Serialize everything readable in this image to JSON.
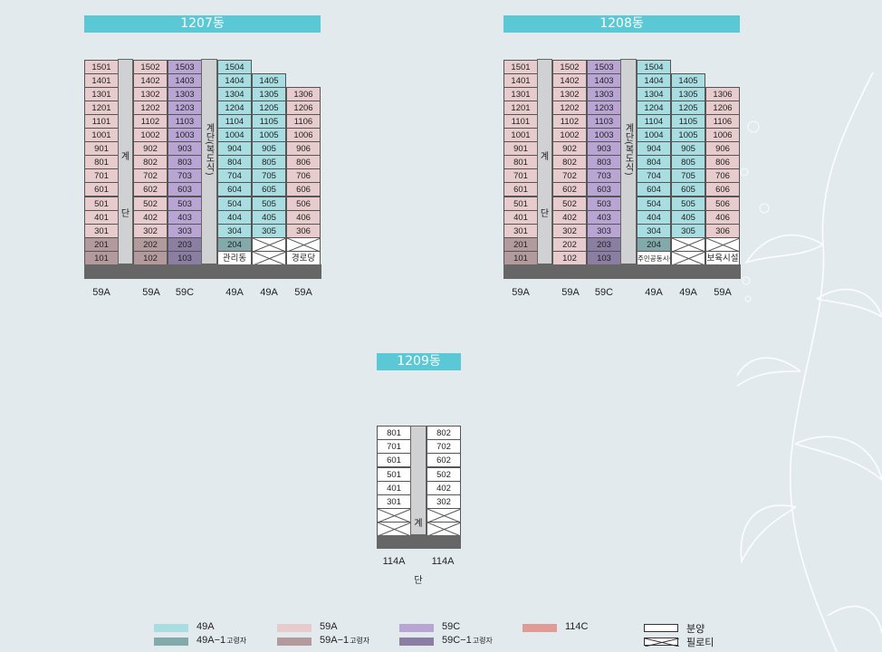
{
  "colors": {
    "49A": "#a8dde1",
    "49A-1": "#84a9aa",
    "59A": "#e8cbcc",
    "59A-1": "#b39b9d",
    "59C": "#b9a5d3",
    "59C-1": "#8b7ea3",
    "114C": "#e19b97",
    "sale": "#ffffff",
    "title_bg": "#5bc8d5",
    "stair": "#cfd1d2",
    "base": "#666666"
  },
  "buildings": {
    "b1207": {
      "title": "1207동",
      "stair_a": "계 단",
      "stair_b": "계단(복도식)",
      "col_labels": [
        "59A",
        "59A",
        "59C",
        "49A",
        "49A",
        "59A"
      ]
    },
    "b1208": {
      "title": "1208동",
      "stair_a": "계 단",
      "stair_b": "계단(복도식)",
      "col_labels": [
        "59A",
        "59A",
        "59C",
        "49A",
        "49A",
        "59A"
      ]
    },
    "b1209": {
      "title": "1209동",
      "stair": "계 단",
      "col_labels": [
        "114A",
        "114A"
      ]
    }
  },
  "grid_1207": {
    "col1": [
      {
        "t": "1501",
        "c": "59A"
      },
      {
        "t": "1401",
        "c": "59A"
      },
      {
        "t": "1301",
        "c": "59A"
      },
      {
        "t": "1201",
        "c": "59A"
      },
      {
        "t": "1101",
        "c": "59A"
      },
      {
        "t": "1001",
        "c": "59A"
      },
      {
        "t": "901",
        "c": "59A"
      },
      {
        "t": "801",
        "c": "59A"
      },
      {
        "t": "701",
        "c": "59A"
      },
      {
        "t": "601",
        "c": "59A"
      },
      {
        "t": "501",
        "c": "59A"
      },
      {
        "t": "401",
        "c": "59A"
      },
      {
        "t": "301",
        "c": "59A"
      },
      {
        "t": "201",
        "c": "59A-1"
      },
      {
        "t": "101",
        "c": "59A-1"
      }
    ],
    "col2": [
      {
        "t": "1502",
        "c": "59A"
      },
      {
        "t": "1402",
        "c": "59A"
      },
      {
        "t": "1302",
        "c": "59A"
      },
      {
        "t": "1202",
        "c": "59A"
      },
      {
        "t": "1102",
        "c": "59A"
      },
      {
        "t": "1002",
        "c": "59A"
      },
      {
        "t": "902",
        "c": "59A"
      },
      {
        "t": "802",
        "c": "59A"
      },
      {
        "t": "702",
        "c": "59A"
      },
      {
        "t": "602",
        "c": "59A"
      },
      {
        "t": "502",
        "c": "59A"
      },
      {
        "t": "402",
        "c": "59A"
      },
      {
        "t": "302",
        "c": "59A"
      },
      {
        "t": "202",
        "c": "59A-1"
      },
      {
        "t": "102",
        "c": "59A-1"
      }
    ],
    "col3": [
      {
        "t": "1503",
        "c": "59C"
      },
      {
        "t": "1403",
        "c": "59C"
      },
      {
        "t": "1303",
        "c": "59C"
      },
      {
        "t": "1203",
        "c": "59C"
      },
      {
        "t": "1103",
        "c": "59C"
      },
      {
        "t": "1003",
        "c": "59C"
      },
      {
        "t": "903",
        "c": "59C"
      },
      {
        "t": "803",
        "c": "59C"
      },
      {
        "t": "703",
        "c": "59C"
      },
      {
        "t": "603",
        "c": "59C"
      },
      {
        "t": "503",
        "c": "59C"
      },
      {
        "t": "403",
        "c": "59C"
      },
      {
        "t": "303",
        "c": "59C"
      },
      {
        "t": "203",
        "c": "59C-1"
      },
      {
        "t": "103",
        "c": "59C-1"
      }
    ],
    "col4": [
      {
        "t": "1504",
        "c": "49A"
      },
      {
        "t": "1404",
        "c": "49A"
      },
      {
        "t": "1304",
        "c": "49A"
      },
      {
        "t": "1204",
        "c": "49A"
      },
      {
        "t": "1104",
        "c": "49A"
      },
      {
        "t": "1004",
        "c": "49A"
      },
      {
        "t": "904",
        "c": "49A"
      },
      {
        "t": "804",
        "c": "49A"
      },
      {
        "t": "704",
        "c": "49A"
      },
      {
        "t": "604",
        "c": "49A"
      },
      {
        "t": "504",
        "c": "49A"
      },
      {
        "t": "404",
        "c": "49A"
      },
      {
        "t": "304",
        "c": "49A"
      },
      {
        "t": "204",
        "c": "49A-1"
      },
      {
        "t": "관리동",
        "c": "sale"
      }
    ],
    "col5": [
      {
        "t": "1405",
        "c": "49A"
      },
      {
        "t": "1305",
        "c": "49A"
      },
      {
        "t": "1205",
        "c": "49A"
      },
      {
        "t": "1105",
        "c": "49A"
      },
      {
        "t": "1005",
        "c": "49A"
      },
      {
        "t": "905",
        "c": "49A"
      },
      {
        "t": "805",
        "c": "49A"
      },
      {
        "t": "705",
        "c": "49A"
      },
      {
        "t": "605",
        "c": "49A"
      },
      {
        "t": "505",
        "c": "49A"
      },
      {
        "t": "405",
        "c": "49A"
      },
      {
        "t": "305",
        "c": "49A"
      },
      {
        "t": "",
        "c": "piloti"
      },
      {
        "t": "",
        "c": "piloti"
      }
    ],
    "col6": [
      {
        "t": "1306",
        "c": "59A"
      },
      {
        "t": "1206",
        "c": "59A"
      },
      {
        "t": "1106",
        "c": "59A"
      },
      {
        "t": "1006",
        "c": "59A"
      },
      {
        "t": "906",
        "c": "59A"
      },
      {
        "t": "806",
        "c": "59A"
      },
      {
        "t": "706",
        "c": "59A"
      },
      {
        "t": "606",
        "c": "59A"
      },
      {
        "t": "506",
        "c": "59A"
      },
      {
        "t": "406",
        "c": "59A"
      },
      {
        "t": "306",
        "c": "59A"
      },
      {
        "t": "",
        "c": "piloti"
      },
      {
        "t": "경로당",
        "c": "sale"
      }
    ]
  },
  "grid_1208": {
    "col1": [
      {
        "t": "1501",
        "c": "59A"
      },
      {
        "t": "1401",
        "c": "59A"
      },
      {
        "t": "1301",
        "c": "59A"
      },
      {
        "t": "1201",
        "c": "59A"
      },
      {
        "t": "1101",
        "c": "59A"
      },
      {
        "t": "1001",
        "c": "59A"
      },
      {
        "t": "901",
        "c": "59A"
      },
      {
        "t": "801",
        "c": "59A"
      },
      {
        "t": "701",
        "c": "59A"
      },
      {
        "t": "601",
        "c": "59A"
      },
      {
        "t": "501",
        "c": "59A"
      },
      {
        "t": "401",
        "c": "59A"
      },
      {
        "t": "301",
        "c": "59A"
      },
      {
        "t": "201",
        "c": "59A-1"
      },
      {
        "t": "101",
        "c": "59A-1"
      }
    ],
    "col2": [
      {
        "t": "1502",
        "c": "59A"
      },
      {
        "t": "1402",
        "c": "59A"
      },
      {
        "t": "1302",
        "c": "59A"
      },
      {
        "t": "1202",
        "c": "59A"
      },
      {
        "t": "1102",
        "c": "59A"
      },
      {
        "t": "1002",
        "c": "59A"
      },
      {
        "t": "902",
        "c": "59A"
      },
      {
        "t": "802",
        "c": "59A"
      },
      {
        "t": "702",
        "c": "59A"
      },
      {
        "t": "602",
        "c": "59A"
      },
      {
        "t": "502",
        "c": "59A"
      },
      {
        "t": "402",
        "c": "59A"
      },
      {
        "t": "302",
        "c": "59A"
      },
      {
        "t": "202",
        "c": "59A"
      },
      {
        "t": "102",
        "c": "59A"
      }
    ],
    "col3": [
      {
        "t": "1503",
        "c": "59C"
      },
      {
        "t": "1403",
        "c": "59C"
      },
      {
        "t": "1303",
        "c": "59C"
      },
      {
        "t": "1203",
        "c": "59C"
      },
      {
        "t": "1103",
        "c": "59C"
      },
      {
        "t": "1003",
        "c": "59C"
      },
      {
        "t": "903",
        "c": "59C"
      },
      {
        "t": "803",
        "c": "59C"
      },
      {
        "t": "703",
        "c": "59C"
      },
      {
        "t": "603",
        "c": "59C"
      },
      {
        "t": "503",
        "c": "59C"
      },
      {
        "t": "403",
        "c": "59C"
      },
      {
        "t": "303",
        "c": "59C"
      },
      {
        "t": "203",
        "c": "59C-1"
      },
      {
        "t": "103",
        "c": "59C-1"
      }
    ],
    "col4": [
      {
        "t": "1504",
        "c": "49A"
      },
      {
        "t": "1404",
        "c": "49A"
      },
      {
        "t": "1304",
        "c": "49A"
      },
      {
        "t": "1204",
        "c": "49A"
      },
      {
        "t": "1104",
        "c": "49A"
      },
      {
        "t": "1004",
        "c": "49A"
      },
      {
        "t": "904",
        "c": "49A"
      },
      {
        "t": "804",
        "c": "49A"
      },
      {
        "t": "704",
        "c": "49A"
      },
      {
        "t": "604",
        "c": "49A"
      },
      {
        "t": "504",
        "c": "49A"
      },
      {
        "t": "404",
        "c": "49A"
      },
      {
        "t": "304",
        "c": "49A"
      },
      {
        "t": "204",
        "c": "49A-1"
      },
      {
        "t": "주민공동시설",
        "c": "sale"
      }
    ],
    "col5": [
      {
        "t": "1405",
        "c": "49A"
      },
      {
        "t": "1305",
        "c": "49A"
      },
      {
        "t": "1205",
        "c": "49A"
      },
      {
        "t": "1105",
        "c": "49A"
      },
      {
        "t": "1005",
        "c": "49A"
      },
      {
        "t": "905",
        "c": "49A"
      },
      {
        "t": "805",
        "c": "49A"
      },
      {
        "t": "705",
        "c": "49A"
      },
      {
        "t": "605",
        "c": "49A"
      },
      {
        "t": "505",
        "c": "49A"
      },
      {
        "t": "405",
        "c": "49A"
      },
      {
        "t": "305",
        "c": "49A"
      },
      {
        "t": "",
        "c": "piloti"
      },
      {
        "t": "",
        "c": "piloti"
      }
    ],
    "col6": [
      {
        "t": "1306",
        "c": "59A"
      },
      {
        "t": "1206",
        "c": "59A"
      },
      {
        "t": "1106",
        "c": "59A"
      },
      {
        "t": "1006",
        "c": "59A"
      },
      {
        "t": "906",
        "c": "59A"
      },
      {
        "t": "806",
        "c": "59A"
      },
      {
        "t": "706",
        "c": "59A"
      },
      {
        "t": "606",
        "c": "59A"
      },
      {
        "t": "506",
        "c": "59A"
      },
      {
        "t": "406",
        "c": "59A"
      },
      {
        "t": "306",
        "c": "59A"
      },
      {
        "t": "",
        "c": "piloti"
      },
      {
        "t": "보육시설",
        "c": "sale"
      }
    ]
  },
  "grid_1209": {
    "col1": [
      {
        "t": "801",
        "c": "sale"
      },
      {
        "t": "701",
        "c": "sale"
      },
      {
        "t": "601",
        "c": "sale"
      },
      {
        "t": "501",
        "c": "sale"
      },
      {
        "t": "401",
        "c": "sale"
      },
      {
        "t": "301",
        "c": "sale"
      },
      {
        "t": "",
        "c": "piloti"
      },
      {
        "t": "",
        "c": "piloti"
      }
    ],
    "col2": [
      {
        "t": "802",
        "c": "sale"
      },
      {
        "t": "702",
        "c": "sale"
      },
      {
        "t": "602",
        "c": "sale"
      },
      {
        "t": "502",
        "c": "sale"
      },
      {
        "t": "402",
        "c": "sale"
      },
      {
        "t": "302",
        "c": "sale"
      },
      {
        "t": "",
        "c": "piloti"
      },
      {
        "t": "",
        "c": "piloti"
      }
    ]
  },
  "legend": [
    {
      "label": "49A",
      "sub": "",
      "color_key": "49A"
    },
    {
      "label": "49A−1",
      "sub": "고령자",
      "color_key": "49A-1"
    },
    {
      "label": "59A",
      "sub": "",
      "color_key": "59A"
    },
    {
      "label": "59A−1",
      "sub": "고령자",
      "color_key": "59A-1"
    },
    {
      "label": "59C",
      "sub": "",
      "color_key": "59C"
    },
    {
      "label": "59C−1",
      "sub": "고령자",
      "color_key": "59C-1"
    },
    {
      "label": "114C",
      "sub": "",
      "color_key": "114C"
    },
    {
      "label": "분양",
      "sub": "",
      "color_key": "sale"
    },
    {
      "label": "필로티",
      "sub": "",
      "color_key": "piloti"
    }
  ]
}
